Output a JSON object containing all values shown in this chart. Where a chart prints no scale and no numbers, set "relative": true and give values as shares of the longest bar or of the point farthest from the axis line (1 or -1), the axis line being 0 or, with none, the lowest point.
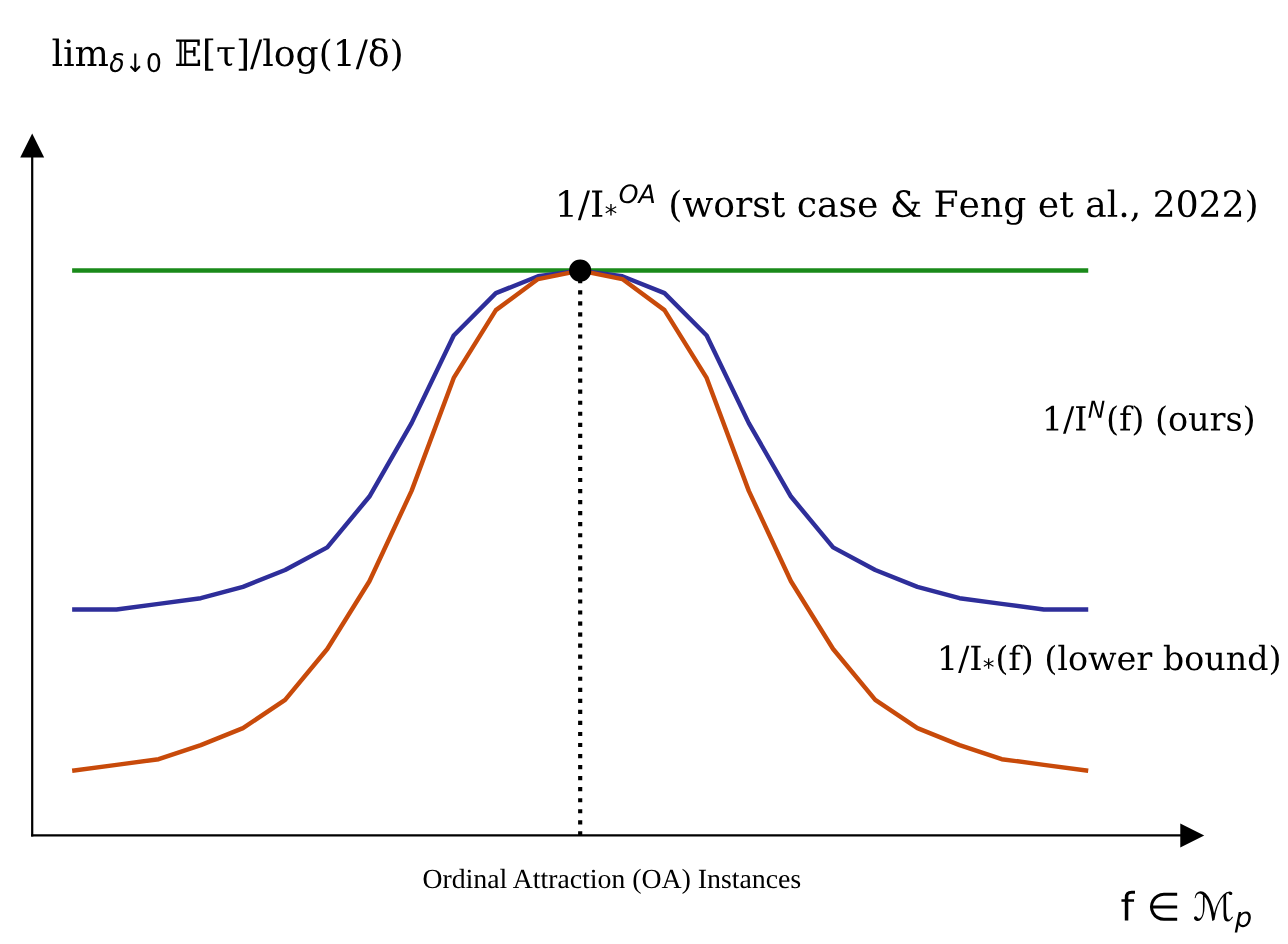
{
  "chart_data": {
    "type": "line",
    "relative": true,
    "xlabel": "Ordinal Attraction (OA) Instances",
    "categories": [
      null,
      null,
      null,
      null,
      null,
      null,
      null,
      null,
      null,
      null,
      null,
      null,
      null,
      null,
      null,
      null,
      null,
      null,
      null,
      null,
      null,
      null,
      null,
      null,
      null
    ],
    "series": [
      {
        "color": "#1a8a1a",
        "values": [
          1,
          1,
          1,
          1,
          1,
          1,
          1,
          1,
          1,
          1,
          1,
          1,
          1,
          1,
          1,
          1,
          1,
          1,
          1,
          1,
          1,
          1,
          1,
          1,
          1
        ]
      },
      {
        "color": "#2e2e9a",
        "values": [
          0.4,
          0.4,
          0.41,
          0.42,
          0.44,
          0.47,
          0.51,
          0.6,
          0.73,
          0.885,
          0.96,
          0.99,
          1.0,
          0.99,
          0.96,
          0.885,
          0.73,
          0.6,
          0.51,
          0.47,
          0.44,
          0.42,
          0.41,
          0.4,
          0.4
        ]
      },
      {
        "color": "#c84a0a",
        "values": [
          0.115,
          0.125,
          0.135,
          0.16,
          0.19,
          0.24,
          0.33,
          0.45,
          0.61,
          0.81,
          0.93,
          0.985,
          1.0,
          0.985,
          0.93,
          0.81,
          0.61,
          0.45,
          0.33,
          0.24,
          0.19,
          0.16,
          0.135,
          0.125,
          0.115
        ]
      }
    ],
    "annotations": [
      "lim$_{δ↓0}$ 𝔼[τ]/log(1/δ)",
      "1/I$_{*}$$^{OA}$ (worst case & Feng et al., 2022)",
      "1/I$^{N}$(f) (ours)",
      "1/I$_{*}$(f) (lower bound)",
      "f ∈ ℳ$_{p}$"
    ],
    "legend": false
  }
}
